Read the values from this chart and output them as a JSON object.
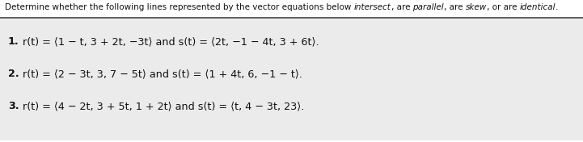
{
  "bg_color": "#ffffff",
  "body_bg": "#e8e8e8",
  "text_color": "#111111",
  "sep_color": "#444444",
  "title_seg1": "Determine whether the following lines represented by the vector equations below ",
  "title_italic1": "intersect",
  "title_seg2": ", are ",
  "title_italic2": "parallel",
  "title_seg3": ", are ",
  "title_italic3": "skew",
  "title_seg4": ", or are ",
  "title_italic4": "identical",
  "title_seg5": ".",
  "eq1_bold": "1.",
  "eq1_rest": " r(t) = ⟨1 − t, 3 + 2t, −3t⟩ and s(t) = ⟨2t, −1 − 4t, 3 + 6t⟩.",
  "eq2_bold": "2.",
  "eq2_rest": " r(t) = ⟨2 − 3t, 3, 7 − 5t⟩ and s(t) = ⟨1 + 4t, 6, −1 − t⟩.",
  "eq3_bold": "3.",
  "eq3_rest": " r(t) = ⟨4 − 2t, 3 + 5t, 1 + 2t⟩ and s(t) = ⟨t, 4 − 3t, 23⟩.",
  "title_fontsize": 7.5,
  "body_fontsize": 9.2
}
